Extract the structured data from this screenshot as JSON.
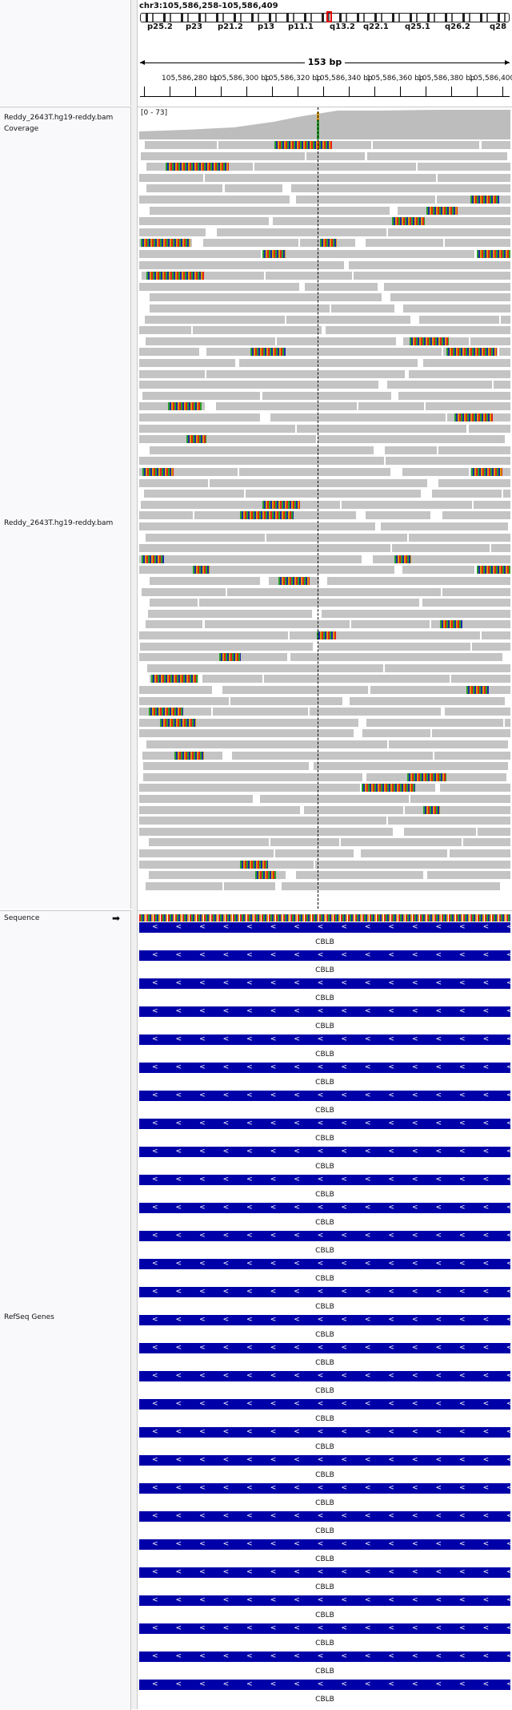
{
  "ruler": {
    "locus": "chr3:105,586,258-105,586,409",
    "span": "153 bp",
    "bands": [
      "p25.2",
      "p23",
      "p21.2",
      "p13",
      "p11.1",
      "q13.2",
      "q22.1",
      "q25.1",
      "q26.2",
      "q28"
    ],
    "positions": [
      "105,586,280 bp",
      "105,586,300 bp",
      "105,586,320 bp",
      "105,586,340 bp",
      "105,586,360 bp",
      "105,586,380 bp",
      "105,586,400 bp"
    ]
  },
  "tracks": {
    "coverage_label": "Reddy_2643T.hg19-reddy.bam Coverage",
    "coverage_range": "[0 - 73]",
    "alignment_label": "Reddy_2643T.hg19-reddy.bam",
    "sequence_label": "Sequence",
    "refseq_label": "RefSeq Genes"
  },
  "genes": {
    "name": "CBLB",
    "strand_glyphs": "<<<<<<<<<<<<<<<<<<<<<<<<<<<<<<<<<<<<<<<<<<<<<<<<<<<<<<<<<<<<<<<<<<<<<<<<<<<<<<<"
  },
  "colors": {
    "read": "#c4c4c4",
    "coverage": "#bdbdbd",
    "gene": "#0000a8",
    "mismatch_a": "#2aa02a",
    "mismatch_c": "#1e2ba8",
    "mismatch_g": "#d59a00",
    "mismatch_t": "#e2231a"
  }
}
